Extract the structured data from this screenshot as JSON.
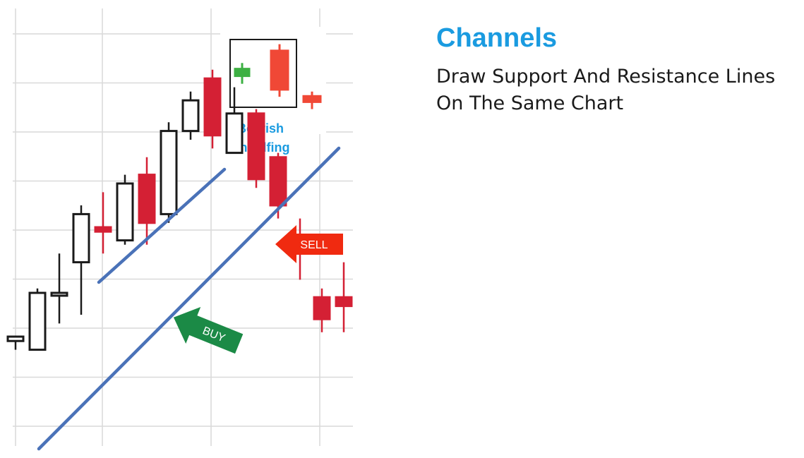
{
  "title": "Channels",
  "subtitle_lines": [
    "Draw Support And Resistance Lines",
    "On The Same Chart"
  ],
  "colors": {
    "bull": "#1a1a1a",
    "bear": "#d42034",
    "channel": "#4a72b8",
    "title": "#1a9be0",
    "buy_arrow": "#1b8a46",
    "sell_arrow": "#f02a10",
    "inset_bull": "#3db043",
    "inset_bear": "#f04836"
  },
  "chart_data": {
    "type": "candlestick",
    "annotation": "Bearish Engulfing",
    "signals": [
      {
        "label": "BUY",
        "candle_index": 8
      },
      {
        "label": "SELL",
        "candle_index": 12
      }
    ],
    "channel_lines": [
      "support",
      "resistance"
    ],
    "candles": [
      {
        "dir": "bull",
        "open": 0.24,
        "high": 0.25,
        "low": 0.22,
        "close": 0.25
      },
      {
        "dir": "bull",
        "open": 0.22,
        "high": 0.36,
        "low": 0.22,
        "close": 0.35
      },
      {
        "dir": "bull",
        "open": 0.35,
        "high": 0.44,
        "low": 0.28,
        "close": 0.35
      },
      {
        "dir": "bull",
        "open": 0.42,
        "high": 0.55,
        "low": 0.3,
        "close": 0.53
      },
      {
        "dir": "bear",
        "open": 0.5,
        "high": 0.58,
        "low": 0.44,
        "close": 0.49
      },
      {
        "dir": "bull",
        "open": 0.47,
        "high": 0.62,
        "low": 0.46,
        "close": 0.6
      },
      {
        "dir": "bear",
        "open": 0.62,
        "high": 0.66,
        "low": 0.46,
        "close": 0.51
      },
      {
        "dir": "bull",
        "open": 0.53,
        "high": 0.74,
        "low": 0.51,
        "close": 0.72
      },
      {
        "dir": "bull",
        "open": 0.72,
        "high": 0.81,
        "low": 0.7,
        "close": 0.79
      },
      {
        "dir": "bear",
        "open": 0.84,
        "high": 0.86,
        "low": 0.68,
        "close": 0.71
      },
      {
        "dir": "bull",
        "open": 0.67,
        "high": 0.82,
        "low": 0.67,
        "close": 0.76
      },
      {
        "dir": "bear",
        "open": 0.76,
        "high": 0.77,
        "low": 0.59,
        "close": 0.61
      },
      {
        "dir": "bear",
        "open": 0.66,
        "high": 0.67,
        "low": 0.52,
        "close": 0.55
      },
      {
        "dir": "bear",
        "open": 0.47,
        "high": 0.52,
        "low": 0.38,
        "close": 0.44
      },
      {
        "dir": "bear",
        "open": 0.34,
        "high": 0.36,
        "low": 0.26,
        "close": 0.29
      },
      {
        "dir": "bear",
        "open": 0.34,
        "high": 0.42,
        "low": 0.26,
        "close": 0.32
      }
    ],
    "inset_candles": [
      {
        "dir": "bull",
        "open": 0.45,
        "high": 0.66,
        "low": 0.34,
        "close": 0.58
      },
      {
        "dir": "bear",
        "open": 0.86,
        "high": 0.95,
        "low": 0.14,
        "close": 0.24
      },
      {
        "dir": "bear",
        "open": 0.16,
        "high": 0.22,
        "low": -0.05,
        "close": 0.05
      }
    ]
  }
}
